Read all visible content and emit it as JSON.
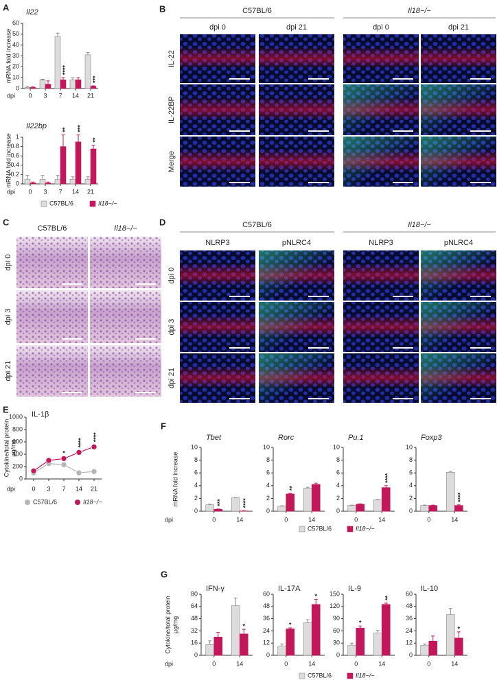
{
  "panel_labels": [
    "A",
    "B",
    "C",
    "D",
    "E",
    "F",
    "G"
  ],
  "panel_b": {
    "groups": [
      "C57BL/6",
      "Il18−/−"
    ],
    "columns": [
      "dpi 0",
      "dpi 21",
      "dpi 0",
      "dpi 21"
    ],
    "rows": [
      "IL-22",
      "IL-22BP",
      "Merge"
    ]
  },
  "panel_c": {
    "columns": [
      "C57BL/6",
      "Il18−/−"
    ],
    "rows": [
      "dpi 0",
      "dpi 3",
      "dpi 21"
    ]
  },
  "panel_d": {
    "groups": [
      "C57BL/6",
      "Il18−/−"
    ],
    "columns": [
      "NLRP3",
      "pNLRC4",
      "NLRP3",
      "pNLRC4"
    ],
    "rows": [
      "dpi 0",
      "dpi 3",
      "dpi 21"
    ]
  },
  "chart_data": [
    {
      "type": "bar",
      "title": "Il22",
      "ylabel": [
        "mRNA fold increase"
      ],
      "xlabel": "dpi",
      "categories": [
        0,
        3,
        7,
        14,
        21
      ],
      "ylim": [
        0,
        60
      ],
      "yticks": [
        0,
        10,
        20,
        30,
        40,
        50,
        60
      ],
      "series": [
        {
          "color": "#dcdcdc",
          "values": [
            1,
            8,
            48,
            8,
            31
          ],
          "errors": [
            0.5,
            0.5,
            3,
            2,
            2
          ]
        },
        {
          "color": "#c2185b",
          "values": [
            1,
            4,
            8,
            8,
            2
          ],
          "errors": [
            0.5,
            3,
            2,
            2,
            0.5
          ],
          "significance": [
            null,
            null,
            "****",
            null,
            "***"
          ]
        }
      ]
    },
    {
      "type": "bar",
      "title": "Il22bp",
      "ylabel": [
        "mRNA fold increase"
      ],
      "xlabel": "dpi",
      "categories": [
        0,
        3,
        7,
        14,
        21
      ],
      "ylim": [
        0,
        1
      ],
      "yticks": [
        0,
        0.2,
        0.4,
        0.6,
        0.8,
        1
      ],
      "series": [
        {
          "name": "C57BL/6",
          "color": "#dcdcdc",
          "values": [
            0.1,
            0.1,
            0.1,
            0.1,
            0.1
          ],
          "errors": [
            0.08,
            0.08,
            0.08,
            0.05,
            0.05
          ]
        },
        {
          "name": "Il18−/−",
          "color": "#c2185b",
          "values": [
            0.02,
            0.02,
            0.8,
            0.9,
            0.75
          ],
          "errors": [
            0.02,
            0.02,
            0.25,
            0.15,
            0.08
          ],
          "significance": [
            null,
            null,
            "**",
            "***",
            "**"
          ]
        }
      ]
    },
    {
      "type": "line",
      "title": "IL-1β",
      "ylabel": [
        "Cytokine/total protein",
        "μg/mg"
      ],
      "xlabel": "dpi",
      "categories": [
        0,
        3,
        7,
        14,
        21
      ],
      "ylim": [
        0,
        1000
      ],
      "yticks": [
        0,
        200,
        400,
        600,
        800,
        1000
      ],
      "series": [
        {
          "name": "C57BL/6",
          "color": "#b5b5b5",
          "values": [
            100,
            250,
            230,
            100,
            120
          ]
        },
        {
          "name": "Il18−/−",
          "color": "#c2185b",
          "values": [
            130,
            300,
            330,
            430,
            520
          ],
          "significance": [
            null,
            null,
            "*",
            "****",
            "****"
          ]
        }
      ]
    },
    {
      "type": "bar",
      "title": "Tbet",
      "ylabel": [
        "mRNA fold increase"
      ],
      "xlabel": "dpi",
      "categories": [
        0,
        14
      ],
      "ylim": [
        0,
        10
      ],
      "yticks": [
        0,
        2,
        4,
        6,
        8,
        10
      ],
      "series": [
        {
          "color": "#dcdcdc",
          "values": [
            1,
            2.1
          ],
          "errors": [
            0.1,
            0.05
          ]
        },
        {
          "color": "#c2185b",
          "values": [
            0.3,
            0.05
          ],
          "errors": [
            0.05,
            0.03
          ],
          "significance": [
            "***",
            "****"
          ]
        }
      ]
    },
    {
      "type": "bar",
      "title": "Rorc",
      "categories": [
        0,
        14
      ],
      "ylim": [
        0,
        10
      ],
      "yticks": [
        0,
        2,
        4,
        6,
        8,
        10
      ],
      "series": [
        {
          "color": "#dcdcdc",
          "values": [
            0.8,
            3.6
          ],
          "errors": [
            0.05,
            0.15
          ]
        },
        {
          "color": "#c2185b",
          "values": [
            2.7,
            4.2
          ],
          "errors": [
            0.1,
            0.2
          ],
          "significance": [
            "**",
            null
          ]
        }
      ]
    },
    {
      "type": "bar",
      "title": "Pu.1",
      "categories": [
        0,
        14
      ],
      "ylim": [
        0,
        10
      ],
      "yticks": [
        0,
        2,
        4,
        6,
        8,
        10
      ],
      "series": [
        {
          "color": "#dcdcdc",
          "values": [
            0.9,
            1.8
          ],
          "errors": [
            0.05,
            0.05
          ]
        },
        {
          "color": "#c2185b",
          "values": [
            1.1,
            3.7
          ],
          "errors": [
            0.05,
            0.3
          ],
          "significance": [
            null,
            "****"
          ]
        }
      ]
    },
    {
      "type": "bar",
      "title": "Foxp3",
      "categories": [
        0,
        14
      ],
      "ylim": [
        0,
        10
      ],
      "yticks": [
        0,
        2,
        4,
        6,
        8,
        10
      ],
      "series": [
        {
          "name": "C57BL/6",
          "color": "#dcdcdc",
          "values": [
            0.9,
            6.1
          ],
          "errors": [
            0.05,
            0.15
          ]
        },
        {
          "name": "Il18−/−",
          "color": "#c2185b",
          "values": [
            0.9,
            0.9
          ],
          "errors": [
            0.05,
            0.1
          ],
          "significance": [
            null,
            "****"
          ]
        }
      ]
    },
    {
      "type": "bar",
      "title": "IFN-γ",
      "ylabel": [
        "Cytokine/total protein",
        "μg/mg"
      ],
      "xlabel": "dpi",
      "categories": [
        0,
        14
      ],
      "ylim": [
        0,
        80
      ],
      "yticks": [
        0,
        16,
        32,
        48,
        64,
        80
      ],
      "series": [
        {
          "color": "#dcdcdc",
          "values": [
            14,
            65
          ],
          "errors": [
            5,
            10
          ]
        },
        {
          "color": "#c2185b",
          "values": [
            24,
            28
          ],
          "errors": [
            6,
            6
          ],
          "significance": [
            null,
            "*"
          ]
        }
      ]
    },
    {
      "type": "bar",
      "title": "IL-17A",
      "categories": [
        0,
        14
      ],
      "ylim": [
        0,
        60
      ],
      "yticks": [
        0,
        12,
        24,
        36,
        48,
        60
      ],
      "series": [
        {
          "color": "#dcdcdc",
          "values": [
            9,
            32
          ],
          "errors": [
            2,
            3
          ]
        },
        {
          "color": "#c2185b",
          "values": [
            26,
            50
          ],
          "errors": [
            1,
            5
          ],
          "significance": [
            "*",
            "*"
          ]
        }
      ]
    },
    {
      "type": "bar",
      "title": "IL-9",
      "categories": [
        0,
        14
      ],
      "ylim": [
        0,
        150
      ],
      "yticks": [
        0,
        30,
        60,
        90,
        120,
        150
      ],
      "series": [
        {
          "color": "#dcdcdc",
          "values": [
            25,
            55
          ],
          "errors": [
            5,
            6
          ]
        },
        {
          "color": "#c2185b",
          "values": [
            67,
            125
          ],
          "errors": [
            5,
            3
          ],
          "significance": [
            "*",
            "**"
          ]
        }
      ]
    },
    {
      "type": "bar",
      "title": "IL-10",
      "categories": [
        0,
        14
      ],
      "ylim": [
        0,
        60
      ],
      "yticks": [
        0,
        12,
        24,
        36,
        48,
        60
      ],
      "series": [
        {
          "name": "C57BL/6",
          "color": "#dcdcdc",
          "values": [
            10,
            40
          ],
          "errors": [
            1,
            6
          ]
        },
        {
          "name": "Il18−/−",
          "color": "#c2185b",
          "values": [
            14,
            17
          ],
          "errors": [
            5,
            6
          ],
          "significance": [
            null,
            "*"
          ]
        }
      ]
    }
  ]
}
